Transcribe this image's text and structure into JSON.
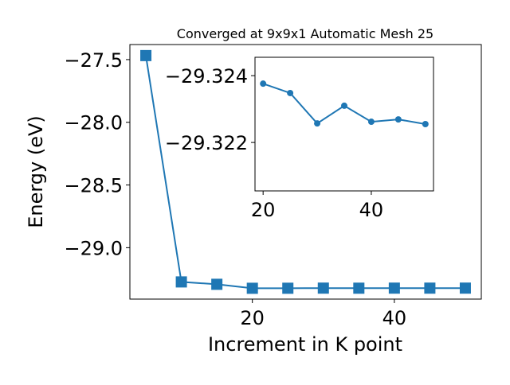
{
  "chart_data": [
    {
      "type": "line",
      "title": "Converged at 9x9x1 Automatic Mesh 25",
      "x_label": "Increment in K point",
      "y_label": "Energy (eV)",
      "x": [
        5,
        10,
        15,
        20,
        25,
        30,
        35,
        40,
        45,
        50
      ],
      "series": [
        {
          "color": "#1f77b4",
          "marker": "square",
          "values": [
            -27.468,
            -29.273,
            -29.292,
            -29.32376,
            -29.32348,
            -29.32257,
            -29.3231,
            -29.32262,
            -29.32269,
            -29.32255
          ]
        }
      ],
      "xlim": [
        2.75,
        52.25
      ],
      "ylim": [
        -29.41,
        -27.38
      ],
      "xticks": [
        20,
        40
      ],
      "yticks": [
        {
          "value": -27.5,
          "label": "−27.5"
        },
        {
          "value": -28.0,
          "label": "−28.0"
        },
        {
          "value": -28.5,
          "label": "−28.5"
        },
        {
          "value": -29.0,
          "label": "−29.0"
        }
      ]
    },
    {
      "type": "line",
      "x": [
        20,
        25,
        30,
        35,
        40,
        45,
        50
      ],
      "series": [
        {
          "color": "#1f77b4",
          "marker": "circle",
          "values": [
            -29.32376,
            -29.32348,
            -29.32257,
            -29.3231,
            -29.32262,
            -29.32269,
            -29.32255
          ]
        }
      ],
      "xlim": [
        18.5,
        51.5
      ],
      "ylim": [
        -29.32055,
        -29.32455
      ],
      "xticks": [
        20,
        40
      ],
      "yticks": [
        {
          "value": -29.324,
          "label": "−29.324"
        },
        {
          "value": -29.322,
          "label": "−29.322"
        }
      ]
    }
  ]
}
